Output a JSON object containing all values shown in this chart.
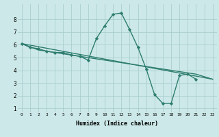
{
  "xlabel": "Humidex (Indice chaleur)",
  "x_values": [
    0,
    1,
    2,
    3,
    4,
    5,
    6,
    7,
    8,
    9,
    10,
    11,
    12,
    13,
    14,
    15,
    16,
    17,
    18,
    19,
    20,
    21,
    22,
    23
  ],
  "line1_y": [
    6.1,
    5.8,
    5.7,
    5.5,
    5.4,
    5.4,
    5.2,
    5.1,
    4.8,
    6.5,
    7.5,
    8.4,
    8.5,
    7.2,
    5.8,
    4.1,
    2.1,
    1.4,
    1.4,
    3.6,
    3.7,
    3.3,
    null,
    null
  ],
  "line2_x": [
    0,
    23
  ],
  "line2_y": [
    6.1,
    3.3
  ],
  "line3_x": [
    0,
    2,
    3,
    4,
    5,
    6,
    7,
    8,
    9,
    10,
    11,
    12,
    13,
    14,
    15,
    16,
    17,
    18,
    19,
    20,
    21,
    22,
    23
  ],
  "line3_y": [
    6.1,
    5.6,
    5.5,
    5.4,
    5.3,
    5.2,
    5.1,
    5.0,
    4.9,
    4.8,
    4.7,
    4.6,
    4.5,
    4.4,
    4.3,
    4.2,
    4.1,
    4.0,
    3.9,
    3.8,
    3.7,
    3.5,
    3.3
  ],
  "ylim": [
    0.7,
    9.2
  ],
  "xlim": [
    -0.5,
    23.5
  ],
  "yticks": [
    1,
    2,
    3,
    4,
    5,
    6,
    7,
    8
  ],
  "xticks": [
    0,
    1,
    2,
    3,
    4,
    5,
    6,
    7,
    8,
    9,
    10,
    11,
    12,
    13,
    14,
    15,
    16,
    17,
    18,
    19,
    20,
    21,
    22,
    23
  ],
  "line_color": "#2e7d6e",
  "bg_color": "#cce8e8",
  "grid_color": "#aacece",
  "marker": "D",
  "marker_size": 2.2,
  "line_width": 1.0
}
